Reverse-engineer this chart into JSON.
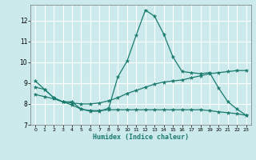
{
  "xlabel": "Humidex (Indice chaleur)",
  "bg_color": "#cceaec",
  "grid_color": "#ffffff",
  "line_color": "#1a7a6e",
  "xlim": [
    -0.5,
    23.5
  ],
  "ylim": [
    7.0,
    12.75
  ],
  "xticks": [
    0,
    1,
    2,
    3,
    4,
    5,
    6,
    7,
    8,
    9,
    10,
    11,
    12,
    13,
    14,
    15,
    16,
    17,
    18,
    19,
    20,
    21,
    22,
    23
  ],
  "yticks": [
    7,
    8,
    9,
    10,
    11,
    12
  ],
  "curve1_x": [
    0,
    1,
    2,
    3,
    4,
    5,
    6,
    7,
    8,
    9,
    10,
    11,
    12,
    13,
    14,
    15,
    16,
    17,
    18,
    19,
    20,
    21,
    22,
    23
  ],
  "curve1_y": [
    9.1,
    8.7,
    8.3,
    8.1,
    8.1,
    7.75,
    7.65,
    7.65,
    7.8,
    9.3,
    10.05,
    11.3,
    12.5,
    12.2,
    11.35,
    10.25,
    9.55,
    9.5,
    9.45,
    9.5,
    8.75,
    8.1,
    7.75,
    7.45
  ],
  "curve2_x": [
    0,
    1,
    2,
    3,
    4,
    5,
    6,
    7,
    8,
    9,
    10,
    11,
    12,
    13,
    14,
    15,
    16,
    17,
    18,
    19,
    20,
    21,
    22,
    23
  ],
  "curve2_y": [
    8.8,
    8.7,
    8.3,
    8.1,
    8.05,
    8.0,
    8.0,
    8.05,
    8.15,
    8.3,
    8.5,
    8.65,
    8.8,
    8.95,
    9.05,
    9.1,
    9.15,
    9.25,
    9.35,
    9.45,
    9.5,
    9.55,
    9.6,
    9.6
  ],
  "curve3_x": [
    0,
    1,
    2,
    3,
    4,
    5,
    6,
    7,
    8,
    9,
    10,
    11,
    12,
    13,
    14,
    15,
    16,
    17,
    18,
    19,
    20,
    21,
    22,
    23
  ],
  "curve3_y": [
    8.45,
    8.35,
    8.25,
    8.1,
    7.95,
    7.75,
    7.68,
    7.68,
    7.72,
    7.72,
    7.72,
    7.72,
    7.72,
    7.72,
    7.72,
    7.72,
    7.72,
    7.72,
    7.72,
    7.68,
    7.62,
    7.58,
    7.53,
    7.45
  ]
}
